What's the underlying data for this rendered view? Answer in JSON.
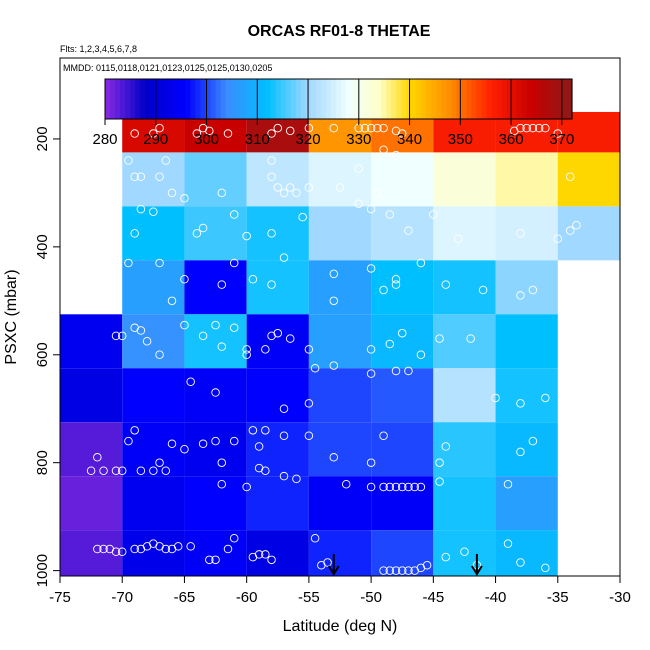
{
  "chart_data": {
    "type": "heatmap",
    "title": "ORCAS RF01-8 THETAE",
    "flights_note": "Flts: 1,2,3,4,5,6,7,8",
    "dates_note": "MMDD: 0115,0118,0121,0123,0125,0125,0130,0205",
    "xlabel": "Latitude (deg N)",
    "ylabel": "PSXC (mbar)",
    "xlim": [
      -75,
      -30
    ],
    "ylim": [
      1010,
      50
    ],
    "x_ticks": [
      -75,
      -70,
      -65,
      -60,
      -55,
      -50,
      -45,
      -40,
      -35,
      -30
    ],
    "y_ticks": [
      200,
      400,
      600,
      800,
      1000
    ],
    "colorbar": {
      "range": [
        280,
        372
      ],
      "ticks": [
        280,
        290,
        300,
        310,
        320,
        330,
        340,
        350,
        360,
        370
      ],
      "stops": [
        {
          "v": 280,
          "c": "#8a2be2"
        },
        {
          "v": 288,
          "c": "#0000c8"
        },
        {
          "v": 296,
          "c": "#0000ff"
        },
        {
          "v": 304,
          "c": "#3c8cff"
        },
        {
          "v": 312,
          "c": "#00bfff"
        },
        {
          "v": 320,
          "c": "#a0d8ff"
        },
        {
          "v": 328,
          "c": "#f0ffff"
        },
        {
          "v": 334,
          "c": "#ffffc8"
        },
        {
          "v": 340,
          "c": "#ffd700"
        },
        {
          "v": 348,
          "c": "#ff8c00"
        },
        {
          "v": 356,
          "c": "#ff2000"
        },
        {
          "v": 364,
          "c": "#c80000"
        },
        {
          "v": 372,
          "c": "#8b1a1a"
        }
      ]
    },
    "cells": {
      "lat_edges": [
        -75,
        -70,
        -65,
        -60,
        -55,
        -50,
        -45,
        -40,
        -35,
        -30
      ],
      "p_edges": [
        150,
        225,
        325,
        425,
        525,
        625,
        725,
        825,
        925,
        1025
      ],
      "values": [
        [
          null,
          362,
          364,
          368,
          347,
          350,
          357,
          357,
          357
        ],
        [
          null,
          320,
          317,
          323,
          326,
          328,
          332,
          335,
          340
        ],
        [
          null,
          312,
          315,
          313,
          320,
          322,
          326,
          325,
          320
        ],
        [
          null,
          307,
          296,
          313,
          307,
          312,
          313,
          319,
          null
        ],
        [
          294,
          305,
          313,
          295,
          307,
          311,
          316,
          312,
          null
        ],
        [
          292,
          296,
          295,
          296,
          300,
          301,
          322,
          313,
          null
        ],
        [
          283,
          295,
          294,
          298,
          300,
          300,
          314,
          311,
          null
        ],
        [
          282,
          294,
          296,
          298,
          295,
          295,
          313,
          307,
          null
        ],
        [
          283,
          293,
          295,
          292,
          298,
          300,
          313,
          311,
          null
        ]
      ]
    },
    "markers": {
      "type": "arrow",
      "x": [
        -53,
        -41.5
      ]
    },
    "points": [
      [
        -69,
        190
      ],
      [
        -67.5,
        190
      ],
      [
        -67,
        180
      ],
      [
        -64,
        190
      ],
      [
        -63.5,
        180
      ],
      [
        -63,
        185
      ],
      [
        -61.5,
        190
      ],
      [
        -58,
        190
      ],
      [
        -57.5,
        180
      ],
      [
        -56.5,
        185
      ],
      [
        -55,
        180
      ],
      [
        -53,
        180
      ],
      [
        -51,
        180
      ],
      [
        -50.5,
        180
      ],
      [
        -50,
        180
      ],
      [
        -49.5,
        180
      ],
      [
        -49,
        180
      ],
      [
        -48,
        185
      ],
      [
        -47.5,
        190
      ],
      [
        -38.5,
        185
      ],
      [
        -38,
        180
      ],
      [
        -37.5,
        180
      ],
      [
        -37,
        180
      ],
      [
        -36.5,
        180
      ],
      [
        -36,
        180
      ],
      [
        -35,
        190
      ],
      [
        -69.5,
        240
      ],
      [
        -69,
        270
      ],
      [
        -68.5,
        270
      ],
      [
        -67,
        270
      ],
      [
        -66.5,
        240
      ],
      [
        -58,
        240
      ],
      [
        -58,
        270
      ],
      [
        -51,
        255
      ],
      [
        -49,
        220
      ],
      [
        -48,
        230
      ],
      [
        -34,
        270
      ],
      [
        -69,
        375
      ],
      [
        -68.5,
        330
      ],
      [
        -67.5,
        335
      ],
      [
        -66,
        300
      ],
      [
        -65,
        310
      ],
      [
        -64,
        375
      ],
      [
        -63.5,
        365
      ],
      [
        -62,
        300
      ],
      [
        -61,
        340
      ],
      [
        -60,
        380
      ],
      [
        -58,
        375
      ],
      [
        -57.5,
        290
      ],
      [
        -57,
        300
      ],
      [
        -56.5,
        290
      ],
      [
        -56,
        300
      ],
      [
        -55.5,
        345
      ],
      [
        -55,
        290
      ],
      [
        -52.5,
        290
      ],
      [
        -51,
        320
      ],
      [
        -50,
        330
      ],
      [
        -49.5,
        300
      ],
      [
        -49,
        300
      ],
      [
        -48.5,
        340
      ],
      [
        -47,
        370
      ],
      [
        -45,
        340
      ],
      [
        -43,
        385
      ],
      [
        -38,
        375
      ],
      [
        -35,
        385
      ],
      [
        -34,
        370
      ],
      [
        -33.5,
        360
      ],
      [
        -69.5,
        430
      ],
      [
        -67,
        430
      ],
      [
        -65,
        460
      ],
      [
        -62,
        470
      ],
      [
        -61,
        430
      ],
      [
        -59.5,
        460
      ],
      [
        -58,
        470
      ],
      [
        -57,
        420
      ],
      [
        -53,
        450
      ],
      [
        -50,
        440
      ],
      [
        -49,
        480
      ],
      [
        -48,
        460
      ],
      [
        -48,
        470
      ],
      [
        -46,
        430
      ],
      [
        -44,
        470
      ],
      [
        -41,
        480
      ],
      [
        -38,
        490
      ],
      [
        -37,
        480
      ],
      [
        -70.5,
        565
      ],
      [
        -70,
        565
      ],
      [
        -69,
        550
      ],
      [
        -68.5,
        555
      ],
      [
        -68,
        575
      ],
      [
        -67,
        600
      ],
      [
        -66,
        500
      ],
      [
        -65,
        545
      ],
      [
        -63.5,
        565
      ],
      [
        -62.5,
        545
      ],
      [
        -62,
        585
      ],
      [
        -61,
        550
      ],
      [
        -60,
        590
      ],
      [
        -60,
        600
      ],
      [
        -58.5,
        590
      ],
      [
        -58,
        565
      ],
      [
        -57.5,
        560
      ],
      [
        -56.5,
        570
      ],
      [
        -55,
        590
      ],
      [
        -53,
        500
      ],
      [
        -50,
        590
      ],
      [
        -48.5,
        580
      ],
      [
        -47.5,
        560
      ],
      [
        -46,
        600
      ],
      [
        -44.5,
        570
      ],
      [
        -42,
        570
      ],
      [
        -64.5,
        650
      ],
      [
        -62.5,
        670
      ],
      [
        -57,
        700
      ],
      [
        -55,
        690
      ],
      [
        -54.5,
        625
      ],
      [
        -53,
        620
      ],
      [
        -50,
        635
      ],
      [
        -48,
        630
      ],
      [
        -47,
        630
      ],
      [
        -40,
        680
      ],
      [
        -38,
        690
      ],
      [
        -36,
        680
      ],
      [
        -72,
        790
      ],
      [
        -69.5,
        760
      ],
      [
        -69,
        740
      ],
      [
        -67,
        800
      ],
      [
        -66,
        765
      ],
      [
        -65,
        775
      ],
      [
        -63.5,
        765
      ],
      [
        -62.5,
        760
      ],
      [
        -62,
        800
      ],
      [
        -61,
        760
      ],
      [
        -59.5,
        740
      ],
      [
        -59,
        770
      ],
      [
        -58.5,
        740
      ],
      [
        -57,
        750
      ],
      [
        -55,
        750
      ],
      [
        -53,
        790
      ],
      [
        -50,
        800
      ],
      [
        -49,
        750
      ],
      [
        -44.5,
        800
      ],
      [
        -44,
        770
      ],
      [
        -38,
        780
      ],
      [
        -37,
        760
      ],
      [
        -72.5,
        815
      ],
      [
        -71.5,
        815
      ],
      [
        -70.5,
        815
      ],
      [
        -70,
        815
      ],
      [
        -68.5,
        815
      ],
      [
        -67.5,
        815
      ],
      [
        -66.5,
        815
      ],
      [
        -62,
        840
      ],
      [
        -60,
        845
      ],
      [
        -59,
        810
      ],
      [
        -58.5,
        815
      ],
      [
        -57,
        825
      ],
      [
        -56,
        830
      ],
      [
        -52,
        840
      ],
      [
        -50,
        845
      ],
      [
        -49,
        845
      ],
      [
        -48.5,
        845
      ],
      [
        -48,
        845
      ],
      [
        -47.5,
        845
      ],
      [
        -47,
        845
      ],
      [
        -46.5,
        845
      ],
      [
        -46,
        845
      ],
      [
        -44.5,
        835
      ],
      [
        -39,
        840
      ],
      [
        -72,
        960
      ],
      [
        -71.5,
        960
      ],
      [
        -71,
        960
      ],
      [
        -70.5,
        965
      ],
      [
        -70,
        965
      ],
      [
        -69,
        960
      ],
      [
        -68.5,
        960
      ],
      [
        -68,
        955
      ],
      [
        -67.5,
        950
      ],
      [
        -67,
        955
      ],
      [
        -66.5,
        960
      ],
      [
        -66,
        960
      ],
      [
        -65.5,
        955
      ],
      [
        -64.5,
        955
      ],
      [
        -63,
        980
      ],
      [
        -62.5,
        980
      ],
      [
        -61.5,
        960
      ],
      [
        -61,
        940
      ],
      [
        -59.5,
        975
      ],
      [
        -59,
        970
      ],
      [
        -58.5,
        970
      ],
      [
        -58,
        980
      ],
      [
        -54,
        990
      ],
      [
        -53.5,
        985
      ],
      [
        -54.5,
        940
      ],
      [
        -49,
        1000
      ],
      [
        -48.5,
        1000
      ],
      [
        -48,
        1000
      ],
      [
        -47.5,
        1000
      ],
      [
        -47,
        1000
      ],
      [
        -46.5,
        1000
      ],
      [
        -46,
        995
      ],
      [
        -45.5,
        990
      ],
      [
        -44,
        975
      ],
      [
        -42.5,
        965
      ],
      [
        -41.5,
        990
      ],
      [
        -39,
        950
      ],
      [
        -38,
        985
      ],
      [
        -36,
        995
      ]
    ]
  }
}
